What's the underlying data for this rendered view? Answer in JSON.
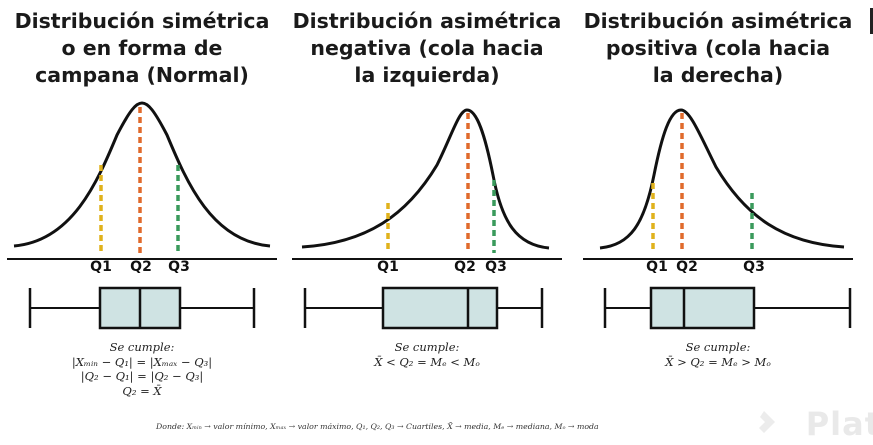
{
  "panels": [
    {
      "title_lines": [
        "Distribución simétrica",
        "o en forma de",
        "campana (Normal)"
      ],
      "q_labels": [
        "Q1",
        "Q2",
        "Q3"
      ],
      "formula_lines": [
        "Se cumple:",
        "|Xₘᵢₙ − Q₁| = |Xₘₐₓ − Q₃|",
        "|Q₂ − Q₁| = |Q₂ − Q₃|",
        "Q₂ = X̄"
      ]
    },
    {
      "title_lines": [
        "Distribución asimétrica",
        "negativa (cola hacia",
        "la izquierda)"
      ],
      "q_labels": [
        "Q1",
        "Q2",
        "Q3"
      ],
      "formula_lines": [
        "Se cumple:",
        "X̄ < Q₂ = Mₑ < Mₒ"
      ]
    },
    {
      "title_lines": [
        "Distribución asimétrica",
        "positiva (cola hacia",
        "la derecha)"
      ],
      "q_labels": [
        "Q1",
        "Q2",
        "Q3"
      ],
      "formula_lines": [
        "Se cumple:",
        "X̄ > Q₂ = Mₑ > Mₒ"
      ]
    }
  ],
  "footnote": "Donde: Xₘᵢₙ → valor mínimo, Xₘₐₓ → valor máximo, Q₁, Q₂, Q₃ → Cuartiles, X̄ → media, Mₑ → mediana, Mₒ → moda",
  "watermark": "Plat",
  "colors": {
    "q1": "#e0b21c",
    "q2": "#e06a2c",
    "q3": "#3a9a5c",
    "box_fill": "#cfe3e3",
    "line": "#111111"
  }
}
